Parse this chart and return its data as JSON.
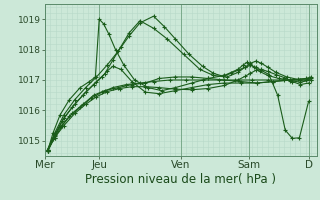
{
  "background_color": "#cce8d8",
  "plot_bg_color": "#cce8d8",
  "grid_color": "#b8d8c8",
  "line_color": "#1a5c1a",
  "marker_color": "#1a5c1a",
  "xlim": [
    0.0,
    5.0
  ],
  "ylim": [
    1014.5,
    1019.5
  ],
  "yticks": [
    1015,
    1016,
    1017,
    1018,
    1019
  ],
  "xtick_labels": [
    "Mer",
    "Jeu",
    "Ven",
    "Sam",
    "D"
  ],
  "xtick_positions": [
    0.0,
    1.0,
    2.5,
    3.75,
    4.85
  ],
  "vlines": [
    0.0,
    1.0,
    2.5,
    3.75,
    4.85
  ],
  "xlabel": "Pression niveau de la mer( hPa )",
  "xlabel_fontsize": 8.5,
  "ytick_fontsize": 6.5,
  "xtick_fontsize": 7.5,
  "series": [
    {
      "x": [
        0.05,
        0.15,
        0.28,
        0.45,
        0.65,
        0.85,
        1.05,
        1.25,
        1.5,
        1.75,
        2.0,
        2.3,
        2.6,
        2.9,
        3.2,
        3.5,
        3.8,
        4.1,
        4.4,
        4.7,
        4.9
      ],
      "y": [
        1014.65,
        1015.05,
        1015.45,
        1015.8,
        1016.1,
        1016.4,
        1016.6,
        1016.75,
        1016.85,
        1016.9,
        1016.95,
        1017.0,
        1017.0,
        1017.0,
        1017.0,
        1017.0,
        1017.0,
        1017.0,
        1017.0,
        1017.0,
        1017.0
      ],
      "marker": "+"
    },
    {
      "x": [
        0.05,
        0.18,
        0.32,
        0.5,
        0.7,
        0.9,
        1.1,
        1.35,
        1.6,
        1.85,
        2.1,
        2.4,
        2.7,
        3.0,
        3.3,
        3.6,
        3.9,
        4.2,
        4.5,
        4.8,
        4.9
      ],
      "y": [
        1014.7,
        1015.1,
        1015.5,
        1015.9,
        1016.2,
        1016.5,
        1016.65,
        1016.75,
        1016.85,
        1016.9,
        1017.05,
        1017.1,
        1017.1,
        1017.05,
        1017.0,
        1016.95,
        1016.9,
        1016.95,
        1017.0,
        1017.0,
        1017.05
      ],
      "marker": "+"
    },
    {
      "x": [
        0.05,
        0.18,
        0.32,
        0.5,
        0.7,
        0.9,
        1.05,
        1.15,
        1.25,
        1.4,
        1.6,
        1.85,
        2.1,
        2.4,
        2.7,
        3.0,
        3.3,
        3.6,
        3.9,
        4.2,
        4.5,
        4.8,
        4.9
      ],
      "y": [
        1014.65,
        1015.15,
        1015.65,
        1016.1,
        1016.5,
        1016.85,
        1017.1,
        1017.3,
        1017.45,
        1017.35,
        1016.95,
        1016.6,
        1016.55,
        1016.65,
        1016.75,
        1016.85,
        1016.9,
        1016.9,
        1016.9,
        1016.95,
        1017.0,
        1017.05,
        1017.1
      ],
      "marker": "+"
    },
    {
      "x": [
        0.05,
        0.15,
        0.28,
        0.45,
        0.65,
        0.82,
        0.93,
        1.0,
        1.08,
        1.18,
        1.3,
        1.45,
        1.65,
        1.9,
        2.15,
        2.4,
        2.7,
        3.0,
        3.3,
        3.55,
        3.65,
        3.72,
        3.78,
        3.85,
        3.95,
        4.1,
        4.3,
        4.5,
        4.7,
        4.9
      ],
      "y": [
        1014.65,
        1015.25,
        1015.85,
        1016.35,
        1016.75,
        1016.95,
        1017.1,
        1019.0,
        1018.85,
        1018.5,
        1018.0,
        1017.5,
        1017.0,
        1016.75,
        1016.65,
        1016.75,
        1016.9,
        1017.05,
        1017.15,
        1017.35,
        1017.5,
        1017.58,
        1017.52,
        1017.42,
        1017.28,
        1017.15,
        1017.05,
        1016.98,
        1016.93,
        1017.0
      ],
      "marker": "+"
    },
    {
      "x": [
        0.05,
        0.18,
        0.35,
        0.55,
        0.75,
        0.95,
        1.1,
        1.25,
        1.4,
        1.55,
        1.75,
        2.0,
        2.25,
        2.55,
        2.85,
        3.1,
        3.35,
        3.55,
        3.68,
        3.78,
        3.88,
        3.98,
        4.1,
        4.25,
        4.45,
        4.65,
        4.85
      ],
      "y": [
        1014.7,
        1015.2,
        1015.75,
        1016.2,
        1016.6,
        1016.95,
        1017.2,
        1017.65,
        1018.1,
        1018.55,
        1018.95,
        1018.7,
        1018.35,
        1017.85,
        1017.35,
        1017.15,
        1017.1,
        1017.25,
        1017.42,
        1017.55,
        1017.62,
        1017.55,
        1017.42,
        1017.25,
        1017.1,
        1017.02,
        1017.05
      ],
      "marker": "+"
    },
    {
      "x": [
        0.05,
        0.18,
        0.35,
        0.55,
        0.75,
        0.95,
        1.15,
        1.35,
        1.55,
        1.75,
        2.0,
        2.2,
        2.4,
        2.65,
        2.9,
        3.1,
        3.28,
        3.42,
        3.55,
        3.68,
        3.78,
        3.88,
        3.98,
        4.12,
        4.28,
        4.42,
        4.55,
        4.68,
        4.85
      ],
      "y": [
        1014.7,
        1015.25,
        1015.85,
        1016.35,
        1016.75,
        1017.1,
        1017.5,
        1017.95,
        1018.45,
        1018.88,
        1019.1,
        1018.75,
        1018.35,
        1017.85,
        1017.45,
        1017.22,
        1017.12,
        1017.22,
        1017.32,
        1017.42,
        1017.48,
        1017.42,
        1017.32,
        1017.18,
        1016.5,
        1015.35,
        1015.08,
        1015.1,
        1016.3
      ],
      "marker": "+"
    },
    {
      "x": [
        0.05,
        0.18,
        0.35,
        0.55,
        0.75,
        0.95,
        1.15,
        1.38,
        1.6,
        1.85,
        2.1,
        2.4,
        2.7,
        3.0,
        3.3,
        3.55,
        3.68,
        3.78,
        3.88,
        3.98,
        4.1,
        4.25,
        4.4,
        4.55,
        4.7,
        4.85
      ],
      "y": [
        1014.65,
        1015.1,
        1015.5,
        1015.9,
        1016.2,
        1016.45,
        1016.62,
        1016.72,
        1016.78,
        1016.78,
        1016.75,
        1016.7,
        1016.68,
        1016.72,
        1016.82,
        1017.0,
        1017.12,
        1017.22,
        1017.32,
        1017.35,
        1017.28,
        1017.18,
        1017.08,
        1016.95,
        1016.85,
        1016.9
      ],
      "marker": "+"
    }
  ]
}
